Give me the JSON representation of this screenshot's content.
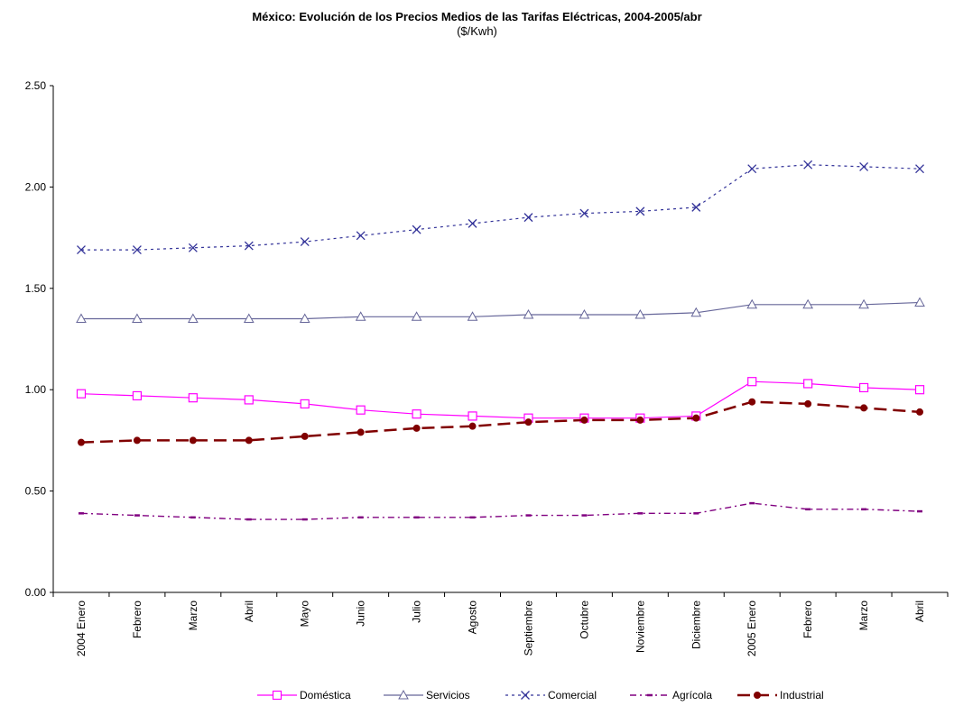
{
  "chart_data": {
    "type": "line",
    "title": "México: Evolución de los Precios Medios de las Tarifas Eléctricas, 2004-2005/abr",
    "subtitle": "($/Kwh)",
    "xlabel": "",
    "ylabel": "",
    "ylim": [
      0,
      2.5
    ],
    "yticks": [
      "0.00",
      "0.50",
      "1.00",
      "1.50",
      "2.00",
      "2.50"
    ],
    "categories": [
      "2004 Enero",
      "Febrero",
      "Marzo",
      "Abril",
      "Mayo",
      "Junio",
      "Julio",
      "Agosto",
      "Septiembre",
      "Octubre",
      "Noviembre",
      "Diciembre",
      "2005 Enero",
      "Febrero",
      "Marzo",
      "Abril"
    ],
    "grid": false,
    "legend_position": "bottom",
    "series": [
      {
        "name": "Doméstica",
        "color": "#ff00ff",
        "style": "solid",
        "marker": "square",
        "values": [
          0.98,
          0.97,
          0.96,
          0.95,
          0.93,
          0.9,
          0.88,
          0.87,
          0.86,
          0.86,
          0.86,
          0.87,
          1.04,
          1.03,
          1.01,
          1.0
        ]
      },
      {
        "name": "Servicios",
        "color": "#666699",
        "style": "solid",
        "marker": "triangle",
        "values": [
          1.35,
          1.35,
          1.35,
          1.35,
          1.35,
          1.36,
          1.36,
          1.36,
          1.37,
          1.37,
          1.37,
          1.38,
          1.42,
          1.42,
          1.42,
          1.43
        ]
      },
      {
        "name": "Comercial",
        "color": "#333399",
        "style": "dotted",
        "marker": "x",
        "values": [
          1.69,
          1.69,
          1.7,
          1.71,
          1.73,
          1.76,
          1.79,
          1.82,
          1.85,
          1.87,
          1.88,
          1.9,
          2.09,
          2.11,
          2.1,
          2.09
        ]
      },
      {
        "name": "Agrícola",
        "color": "#800080",
        "style": "dashdot",
        "marker": "dash",
        "values": [
          0.39,
          0.38,
          0.37,
          0.36,
          0.36,
          0.37,
          0.37,
          0.37,
          0.38,
          0.38,
          0.39,
          0.39,
          0.44,
          0.41,
          0.41,
          0.4
        ]
      },
      {
        "name": "Industrial",
        "color": "#800000",
        "style": "dashed",
        "marker": "circle",
        "values": [
          0.74,
          0.75,
          0.75,
          0.75,
          0.77,
          0.79,
          0.81,
          0.82,
          0.84,
          0.85,
          0.85,
          0.86,
          0.94,
          0.93,
          0.91,
          0.89
        ]
      }
    ]
  }
}
